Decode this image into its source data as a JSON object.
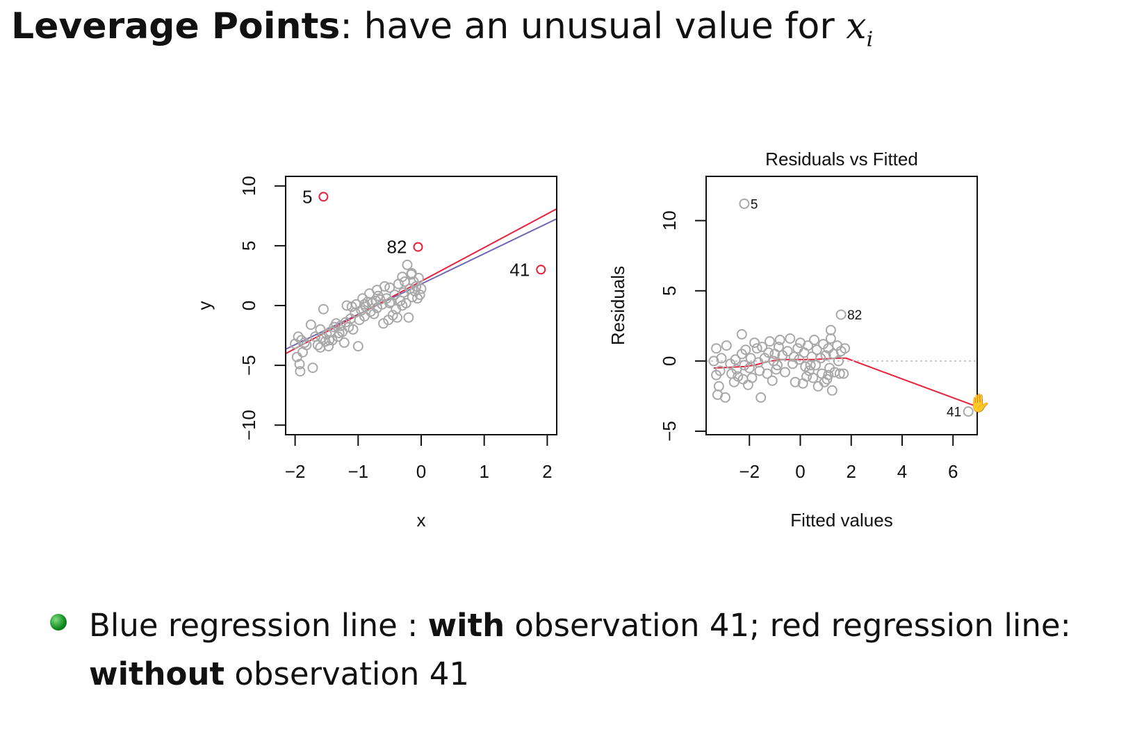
{
  "slide": {
    "title_bold": "Leverage Points",
    "title_rest": ": have an unusual value for ",
    "title_var": "x",
    "title_sub": "i"
  },
  "bullet": {
    "part1": "Blue regression line : ",
    "bold1": "with",
    "part2": " observation 41; red regression line: ",
    "bold2": "without",
    "part3": " observation 41"
  },
  "colors": {
    "points": "#a8a8a8",
    "red": "#e8203a",
    "blue": "#6f66b5",
    "refline": "#c8c8c8"
  },
  "cursor_icon": "hand-cursor-icon",
  "chart_data": [
    {
      "type": "scatter",
      "title": "",
      "xlabel": "x",
      "ylabel": "y",
      "xlim": [
        -2.15,
        2.15
      ],
      "ylim": [
        -10.8,
        10.8
      ],
      "xticks": [
        -2,
        -1,
        0,
        1,
        2
      ],
      "xtick_labels": [
        "−2",
        "−1",
        "0",
        "1",
        "2"
      ],
      "yticks": [
        -10,
        -5,
        0,
        5,
        10
      ],
      "ytick_labels": [
        "−10",
        "−5",
        "0",
        "5",
        "10"
      ],
      "points": [
        [
          -2.0,
          -3.2
        ],
        [
          -1.95,
          -2.6
        ],
        [
          -1.9,
          -2.9
        ],
        [
          -1.85,
          -3.1
        ],
        [
          -1.97,
          -4.3
        ],
        [
          -1.93,
          -4.9
        ],
        [
          -1.92,
          -5.5
        ],
        [
          -1.88,
          -3.9
        ],
        [
          -1.82,
          -3.3
        ],
        [
          -1.75,
          -1.6
        ],
        [
          -1.72,
          -5.2
        ],
        [
          -1.68,
          -2.6
        ],
        [
          -1.64,
          -3.3
        ],
        [
          -1.6,
          -3.5
        ],
        [
          -1.58,
          -2.7
        ],
        [
          -1.55,
          -0.3
        ],
        [
          -1.52,
          -3.0
        ],
        [
          -1.5,
          -2.4
        ],
        [
          -1.47,
          -3.4
        ],
        [
          -1.44,
          -2.2
        ],
        [
          -1.41,
          -2.9
        ],
        [
          -1.38,
          -1.8
        ],
        [
          -1.35,
          -1.5
        ],
        [
          -1.32,
          -2.6
        ],
        [
          -1.28,
          -1.7
        ],
        [
          -1.25,
          -2.2
        ],
        [
          -1.22,
          -3.1
        ],
        [
          -1.2,
          -1.4
        ],
        [
          -1.18,
          0.0
        ],
        [
          -1.15,
          -1.8
        ],
        [
          -1.12,
          -1.1
        ],
        [
          -1.1,
          -0.1
        ],
        [
          -1.08,
          -2.0
        ],
        [
          -1.05,
          -0.6
        ],
        [
          -1.03,
          0.1
        ],
        [
          -1.0,
          -3.4
        ],
        [
          -0.98,
          -1.2
        ],
        [
          -0.95,
          -0.4
        ],
        [
          -0.93,
          0.6
        ],
        [
          -0.9,
          -0.9
        ],
        [
          -0.88,
          -0.1
        ],
        [
          -0.85,
          0.3
        ],
        [
          -0.82,
          1.0
        ],
        [
          -0.8,
          -0.5
        ],
        [
          -0.78,
          0.2
        ],
        [
          -0.75,
          -0.7
        ],
        [
          -0.72,
          0.4
        ],
        [
          -0.7,
          -0.2
        ],
        [
          -0.68,
          0.8
        ],
        [
          -0.65,
          0.5
        ],
        [
          -0.62,
          0.1
        ],
        [
          -0.6,
          -1.5
        ],
        [
          -0.58,
          1.6
        ],
        [
          -0.55,
          0.6
        ],
        [
          -0.52,
          -1.2
        ],
        [
          -0.5,
          1.5
        ],
        [
          -0.48,
          0.3
        ],
        [
          -0.45,
          -0.8
        ],
        [
          -0.42,
          0.9
        ],
        [
          -0.4,
          -0.3
        ],
        [
          -0.38,
          -1.0
        ],
        [
          -0.36,
          1.8
        ],
        [
          -0.33,
          0.4
        ],
        [
          -0.3,
          2.4
        ],
        [
          -0.28,
          1.1
        ],
        [
          -0.26,
          2.0
        ],
        [
          -0.24,
          0.2
        ],
        [
          -0.22,
          3.4
        ],
        [
          -0.2,
          -1.0
        ],
        [
          -0.18,
          1.4
        ],
        [
          -0.16,
          2.6
        ],
        [
          -0.14,
          0.7
        ],
        [
          -0.12,
          2.0
        ],
        [
          -0.1,
          1.2
        ],
        [
          -0.08,
          1.6
        ],
        [
          -0.06,
          0.6
        ],
        [
          -0.04,
          2.3
        ],
        [
          -0.02,
          0.9
        ],
        [
          0.0,
          1.4
        ],
        [
          -0.5,
          0.2
        ],
        [
          -0.7,
          1.3
        ],
        [
          -0.9,
          0.1
        ],
        [
          -1.3,
          -2.3
        ],
        [
          -1.6,
          -2.0
        ],
        [
          -1.46,
          -2.9
        ],
        [
          -0.3,
          0.0
        ],
        [
          -0.15,
          2.7
        ]
      ],
      "annotated_points": [
        {
          "label": "5",
          "x": -1.55,
          "y": 9.1
        },
        {
          "label": "82",
          "x": -0.05,
          "y": 4.9
        },
        {
          "label": "41",
          "x": 1.9,
          "y": 3.0
        }
      ],
      "series": [
        {
          "type": "line",
          "values": [
            [
              -2.15,
              -3.65
            ],
            [
              2.15,
              7.25
            ]
          ]
        },
        {
          "type": "line",
          "values": [
            [
              -2.15,
              -4.02
            ],
            [
              2.15,
              8.08
            ]
          ]
        }
      ]
    },
    {
      "type": "scatter",
      "title": "Residuals vs Fitted",
      "xlabel": "Fitted values",
      "ylabel": "Residuals",
      "xlim": [
        -3.7,
        6.95
      ],
      "ylim": [
        -5.25,
        13.15
      ],
      "xticks": [
        -2,
        0,
        2,
        4,
        6
      ],
      "xtick_labels": [
        "−2",
        "0",
        "2",
        "4",
        "6"
      ],
      "yticks": [
        -5,
        0,
        5,
        10
      ],
      "ytick_labels": [
        "−5",
        "0",
        "5",
        "10"
      ],
      "points": [
        [
          -3.4,
          0.0
        ],
        [
          -3.3,
          0.9
        ],
        [
          -3.3,
          -1.0
        ],
        [
          -3.25,
          -2.4
        ],
        [
          -3.2,
          -1.8
        ],
        [
          -3.15,
          -0.7
        ],
        [
          -3.1,
          0.2
        ],
        [
          -2.95,
          -2.6
        ],
        [
          -2.9,
          1.1
        ],
        [
          -2.75,
          -0.2
        ],
        [
          -2.7,
          -0.9
        ],
        [
          -2.6,
          -1.5
        ],
        [
          -2.55,
          0.1
        ],
        [
          -2.5,
          -0.6
        ],
        [
          -2.45,
          -1.1
        ],
        [
          -2.3,
          0.5
        ],
        [
          -2.25,
          -1.3
        ],
        [
          -2.2,
          -0.3
        ],
        [
          -2.15,
          0.8
        ],
        [
          -2.05,
          -1.7
        ],
        [
          -2.0,
          -0.5
        ],
        [
          -1.95,
          0.2
        ],
        [
          -1.9,
          -1.2
        ],
        [
          -1.8,
          1.3
        ],
        [
          -1.7,
          0.9
        ],
        [
          -1.65,
          -0.1
        ],
        [
          -1.6,
          -0.7
        ],
        [
          -1.55,
          -2.6
        ],
        [
          -1.5,
          1.0
        ],
        [
          -1.4,
          0.2
        ],
        [
          -1.3,
          -0.9
        ],
        [
          -1.25,
          0.6
        ],
        [
          -1.2,
          1.4
        ],
        [
          -1.1,
          -1.4
        ],
        [
          -1.05,
          0.0
        ],
        [
          -1.0,
          0.5
        ],
        [
          -0.9,
          -0.3
        ],
        [
          -0.85,
          1.0
        ],
        [
          -0.8,
          1.5
        ],
        [
          -0.7,
          0.4
        ],
        [
          -0.6,
          -0.8
        ],
        [
          -0.5,
          0.7
        ],
        [
          -0.4,
          1.6
        ],
        [
          -0.3,
          -0.2
        ],
        [
          -0.25,
          0.3
        ],
        [
          -0.2,
          -1.5
        ],
        [
          -0.1,
          0.9
        ],
        [
          -0.05,
          0.1
        ],
        [
          0.0,
          1.3
        ],
        [
          0.1,
          -1.6
        ],
        [
          0.15,
          0.6
        ],
        [
          0.2,
          -0.4
        ],
        [
          0.3,
          1.1
        ],
        [
          0.35,
          -0.7
        ],
        [
          0.45,
          0.3
        ],
        [
          0.5,
          -1.2
        ],
        [
          0.55,
          1.5
        ],
        [
          0.6,
          -0.3
        ],
        [
          0.65,
          0.8
        ],
        [
          0.7,
          -1.8
        ],
        [
          0.8,
          0.2
        ],
        [
          0.85,
          -0.9
        ],
        [
          0.9,
          1.2
        ],
        [
          1.0,
          0.4
        ],
        [
          1.05,
          -1.3
        ],
        [
          1.1,
          0.9
        ],
        [
          1.15,
          -0.5
        ],
        [
          1.2,
          1.6
        ],
        [
          1.25,
          -2.1
        ],
        [
          1.3,
          0.5
        ],
        [
          1.35,
          -0.8
        ],
        [
          1.45,
          1.1
        ],
        [
          1.5,
          0.0
        ],
        [
          1.55,
          -0.9
        ],
        [
          1.6,
          0.7
        ],
        [
          1.7,
          -0.9
        ],
        [
          1.75,
          0.9
        ],
        [
          1.2,
          2.2
        ],
        [
          -2.3,
          1.9
        ],
        [
          0.25,
          -1.1
        ],
        [
          0.4,
          -0.3
        ],
        [
          0.95,
          -1.5
        ],
        [
          -0.95,
          -0.6
        ],
        [
          1.1,
          -1.0
        ]
      ],
      "annotated_points": [
        {
          "label": "5",
          "x": -2.2,
          "y": 11.2
        },
        {
          "label": "82",
          "x": 1.6,
          "y": 3.3
        },
        {
          "label": "41",
          "x": 6.6,
          "y": -3.6
        }
      ],
      "series": [
        {
          "type": "line",
          "values": [
            [
              -3.4,
              -0.5
            ],
            [
              -2.8,
              -0.45
            ],
            [
              -2.2,
              -0.4
            ],
            [
              -1.8,
              -0.3
            ],
            [
              -1.3,
              -0.05
            ],
            [
              -0.8,
              0.1
            ],
            [
              -0.2,
              0.1
            ],
            [
              0.5,
              0.1
            ],
            [
              1.0,
              0.15
            ],
            [
              1.5,
              0.2
            ],
            [
              1.8,
              0.2
            ],
            [
              6.95,
              -3.25
            ]
          ]
        },
        {
          "type": "line",
          "values": [
            [
              -3.7,
              0.0
            ],
            [
              6.95,
              0.0
            ]
          ]
        }
      ]
    }
  ]
}
